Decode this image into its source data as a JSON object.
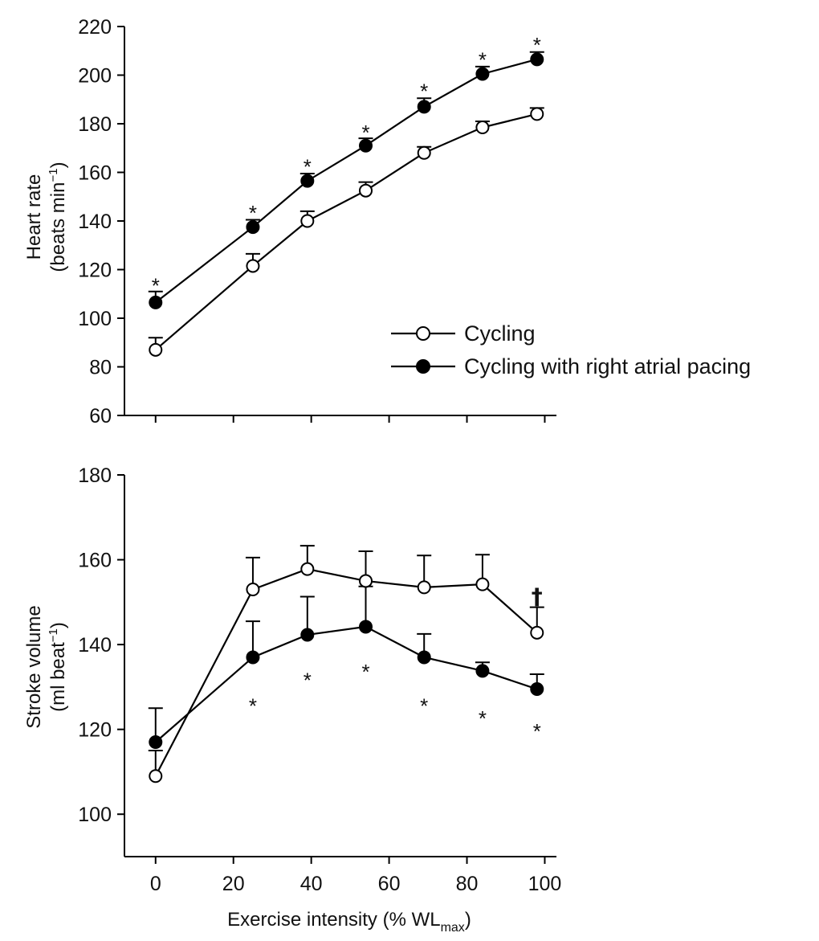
{
  "chart_data": [
    {
      "type": "line",
      "ylabel_line1": "Heart rate",
      "ylabel_line2": "(beats min",
      "ylabel_sup": "−1",
      "ylabel_close": ")",
      "ylim": [
        60,
        220
      ],
      "yticks": [
        "60",
        "80",
        "100",
        "120",
        "140",
        "160",
        "180",
        "200",
        "220"
      ],
      "x": [
        0,
        25,
        39,
        54,
        69,
        84,
        98
      ],
      "series": [
        {
          "name": "Cycling",
          "marker": "open",
          "values": [
            87,
            121.5,
            140,
            152.5,
            168,
            178.5,
            184
          ],
          "errors": [
            5,
            5,
            4,
            3.5,
            2.5,
            2.5,
            2.5
          ]
        },
        {
          "name": "Cycling with right atrial pacing",
          "marker": "filled",
          "values": [
            106.5,
            137.5,
            156.5,
            171,
            187,
            200.5,
            206.5
          ],
          "errors": [
            4.5,
            3,
            3,
            3,
            3.5,
            3,
            3
          ]
        }
      ],
      "annotations": [
        {
          "text": "*",
          "x": 0,
          "y": 115
        },
        {
          "text": "*",
          "x": 25,
          "y": 145
        },
        {
          "text": "*",
          "x": 39,
          "y": 164
        },
        {
          "text": "*",
          "x": 54,
          "y": 178
        },
        {
          "text": "*",
          "x": 69,
          "y": 195
        },
        {
          "text": "*",
          "x": 84,
          "y": 208
        },
        {
          "text": "*",
          "x": 98,
          "y": 214
        }
      ],
      "legend": "center-right"
    },
    {
      "type": "line",
      "ylabel_line1": "Stroke volume",
      "ylabel_line2": "(ml beat",
      "ylabel_sup": "−1",
      "ylabel_close": ")",
      "ylim": [
        90,
        180
      ],
      "yticks": [
        "100",
        "120",
        "140",
        "160",
        "180"
      ],
      "xlim": [
        -8,
        103
      ],
      "xticks": [
        "0",
        "20",
        "40",
        "60",
        "80",
        "100"
      ],
      "xlabel_pre": "Exercise intensity (% WL",
      "xlabel_sub": "max",
      "xlabel_post": ")",
      "x": [
        0,
        25,
        39,
        54,
        69,
        84,
        98
      ],
      "series": [
        {
          "name": "Cycling",
          "marker": "open",
          "values": [
            109,
            153,
            157.8,
            155,
            153.5,
            154.2,
            142.8
          ],
          "errors": [
            6,
            7.5,
            5.5,
            7,
            7.5,
            7,
            6
          ]
        },
        {
          "name": "Cycling with right atrial pacing",
          "marker": "filled",
          "values": [
            117,
            137,
            142.3,
            144.2,
            137,
            133.8,
            129.5
          ],
          "errors": [
            8,
            8.5,
            9,
            9.5,
            5.5,
            2,
            3.5
          ]
        }
      ],
      "annotations": [
        {
          "text": "*",
          "x": 25,
          "y": 126.5
        },
        {
          "text": "*",
          "x": 39,
          "y": 132.5
        },
        {
          "text": "*",
          "x": 54,
          "y": 134.5
        },
        {
          "text": "*",
          "x": 69,
          "y": 126.5
        },
        {
          "text": "*",
          "x": 84,
          "y": 123.5
        },
        {
          "text": "*",
          "x": 98,
          "y": 120.5
        },
        {
          "text": "†",
          "x": 98,
          "y": 151.5
        }
      ]
    }
  ]
}
